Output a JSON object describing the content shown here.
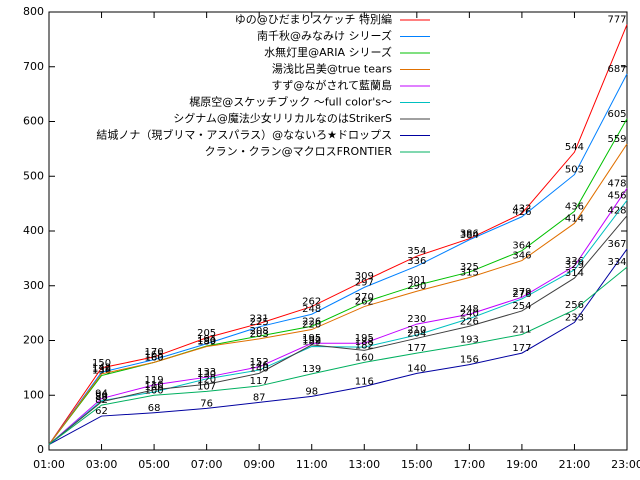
{
  "chart_data": {
    "type": "line",
    "x": [
      1,
      3,
      5,
      7,
      9,
      11,
      13,
      15,
      17,
      19,
      21,
      23
    ],
    "xlim": [
      1,
      23
    ],
    "xticks": [
      {
        "value": 1,
        "label": "01:00"
      },
      {
        "value": 3,
        "label": "03:00"
      },
      {
        "value": 5,
        "label": "05:00"
      },
      {
        "value": 7,
        "label": "07:00"
      },
      {
        "value": 9,
        "label": "09:00"
      },
      {
        "value": 11,
        "label": "11:00"
      },
      {
        "value": 13,
        "label": "13:00"
      },
      {
        "value": 15,
        "label": "15:00"
      },
      {
        "value": 17,
        "label": "17:00"
      },
      {
        "value": 19,
        "label": "19:00"
      },
      {
        "value": 21,
        "label": "21:00"
      },
      {
        "value": 23,
        "label": "23:00"
      }
    ],
    "ylim": [
      0,
      800
    ],
    "yticks": [
      0,
      100,
      200,
      300,
      400,
      500,
      600,
      700,
      800
    ],
    "series": [
      {
        "name": "ゆの@ひだまりスケッチ 特別編",
        "color": "#ff0000",
        "values": [
          10,
          150,
          170,
          205,
          231,
          262,
          309,
          354,
          386,
          432,
          544,
          777
        ],
        "value_labels": [
          null,
          "150",
          "170",
          "205",
          "231",
          "262",
          "309",
          "354",
          "386",
          "432",
          "544",
          "777"
        ]
      },
      {
        "name": "南千秋@みなみけ シリーズ",
        "color": "#0080ff",
        "values": [
          10,
          142,
          165,
          194,
          225,
          248,
          297,
          336,
          384,
          426,
          503,
          687
        ],
        "value_labels": [
          null,
          "142",
          "165",
          "194",
          "225",
          "248",
          "297",
          "336",
          "384",
          "426",
          "503",
          "687"
        ]
      },
      {
        "name": "水無灯里@ARIA シリーズ",
        "color": "#00c000",
        "values": [
          10,
          136,
          160,
          190,
          208,
          226,
          270,
          301,
          325,
          364,
          436,
          605
        ],
        "value_labels": [
          null,
          "136",
          "160",
          "190",
          "208",
          "226",
          "270",
          "301",
          "325",
          "364",
          "436",
          "605"
        ]
      },
      {
        "name": "湯浅比呂美@true tears",
        "color": "#e07000",
        "values": [
          10,
          139,
          160,
          189,
          203,
          220,
          262,
          290,
          315,
          346,
          414,
          559
        ],
        "value_labels": [
          null,
          "139",
          "160",
          "189",
          "203",
          "220",
          "262",
          "290",
          "315",
          "346",
          "414",
          "559"
        ]
      },
      {
        "name": "すず@ながされて藍蘭島",
        "color": "#c000ff",
        "values": [
          10,
          94,
          119,
          133,
          152,
          195,
          195,
          230,
          248,
          279,
          336,
          478
        ],
        "value_labels": [
          null,
          "94",
          "119",
          "133",
          "152",
          "195",
          "195",
          "230",
          "248",
          "279",
          "336",
          "478"
        ]
      },
      {
        "name": "梶原空@スケッチブック ～full color's～",
        "color": "#00c0c0",
        "values": [
          10,
          90,
          106,
          130,
          146,
          189,
          188,
          210,
          240,
          276,
          329,
          456
        ],
        "value_labels": [
          null,
          "90",
          "106",
          "130",
          "146",
          "189",
          "188",
          "210",
          "240",
          "276",
          "329",
          "456"
        ]
      },
      {
        "name": "シグナム@魔法少女リリカルなのはStrikerS",
        "color": "#404040",
        "values": [
          10,
          88,
          110,
          120,
          140,
          192,
          182,
          204,
          226,
          254,
          314,
          428
        ],
        "value_labels": [
          null,
          "88",
          "110",
          "120",
          "140",
          "192",
          "182",
          "204",
          "226",
          "254",
          "314",
          "428"
        ]
      },
      {
        "name": "結城ノナ（現ブリマ・アスパラス）@なないろ★ドロップス",
        "color": "#0000a0",
        "values": [
          10,
          62,
          68,
          76,
          87,
          98,
          116,
          140,
          156,
          177,
          233,
          367
        ],
        "value_labels": [
          null,
          "62",
          "68",
          "76",
          "87",
          "98",
          "116",
          "140",
          "156",
          "177",
          "233",
          "367"
        ]
      },
      {
        "name": "クラン・クラン@マクロスFRONTIER",
        "color": "#00b060",
        "values": [
          10,
          82,
          100,
          107,
          117,
          139,
          160,
          177,
          193,
          211,
          256,
          334
        ],
        "value_labels": [
          null,
          "82",
          "100",
          "107",
          "117",
          "139",
          "160",
          "177",
          "193",
          "211",
          "256",
          "334"
        ]
      }
    ]
  }
}
